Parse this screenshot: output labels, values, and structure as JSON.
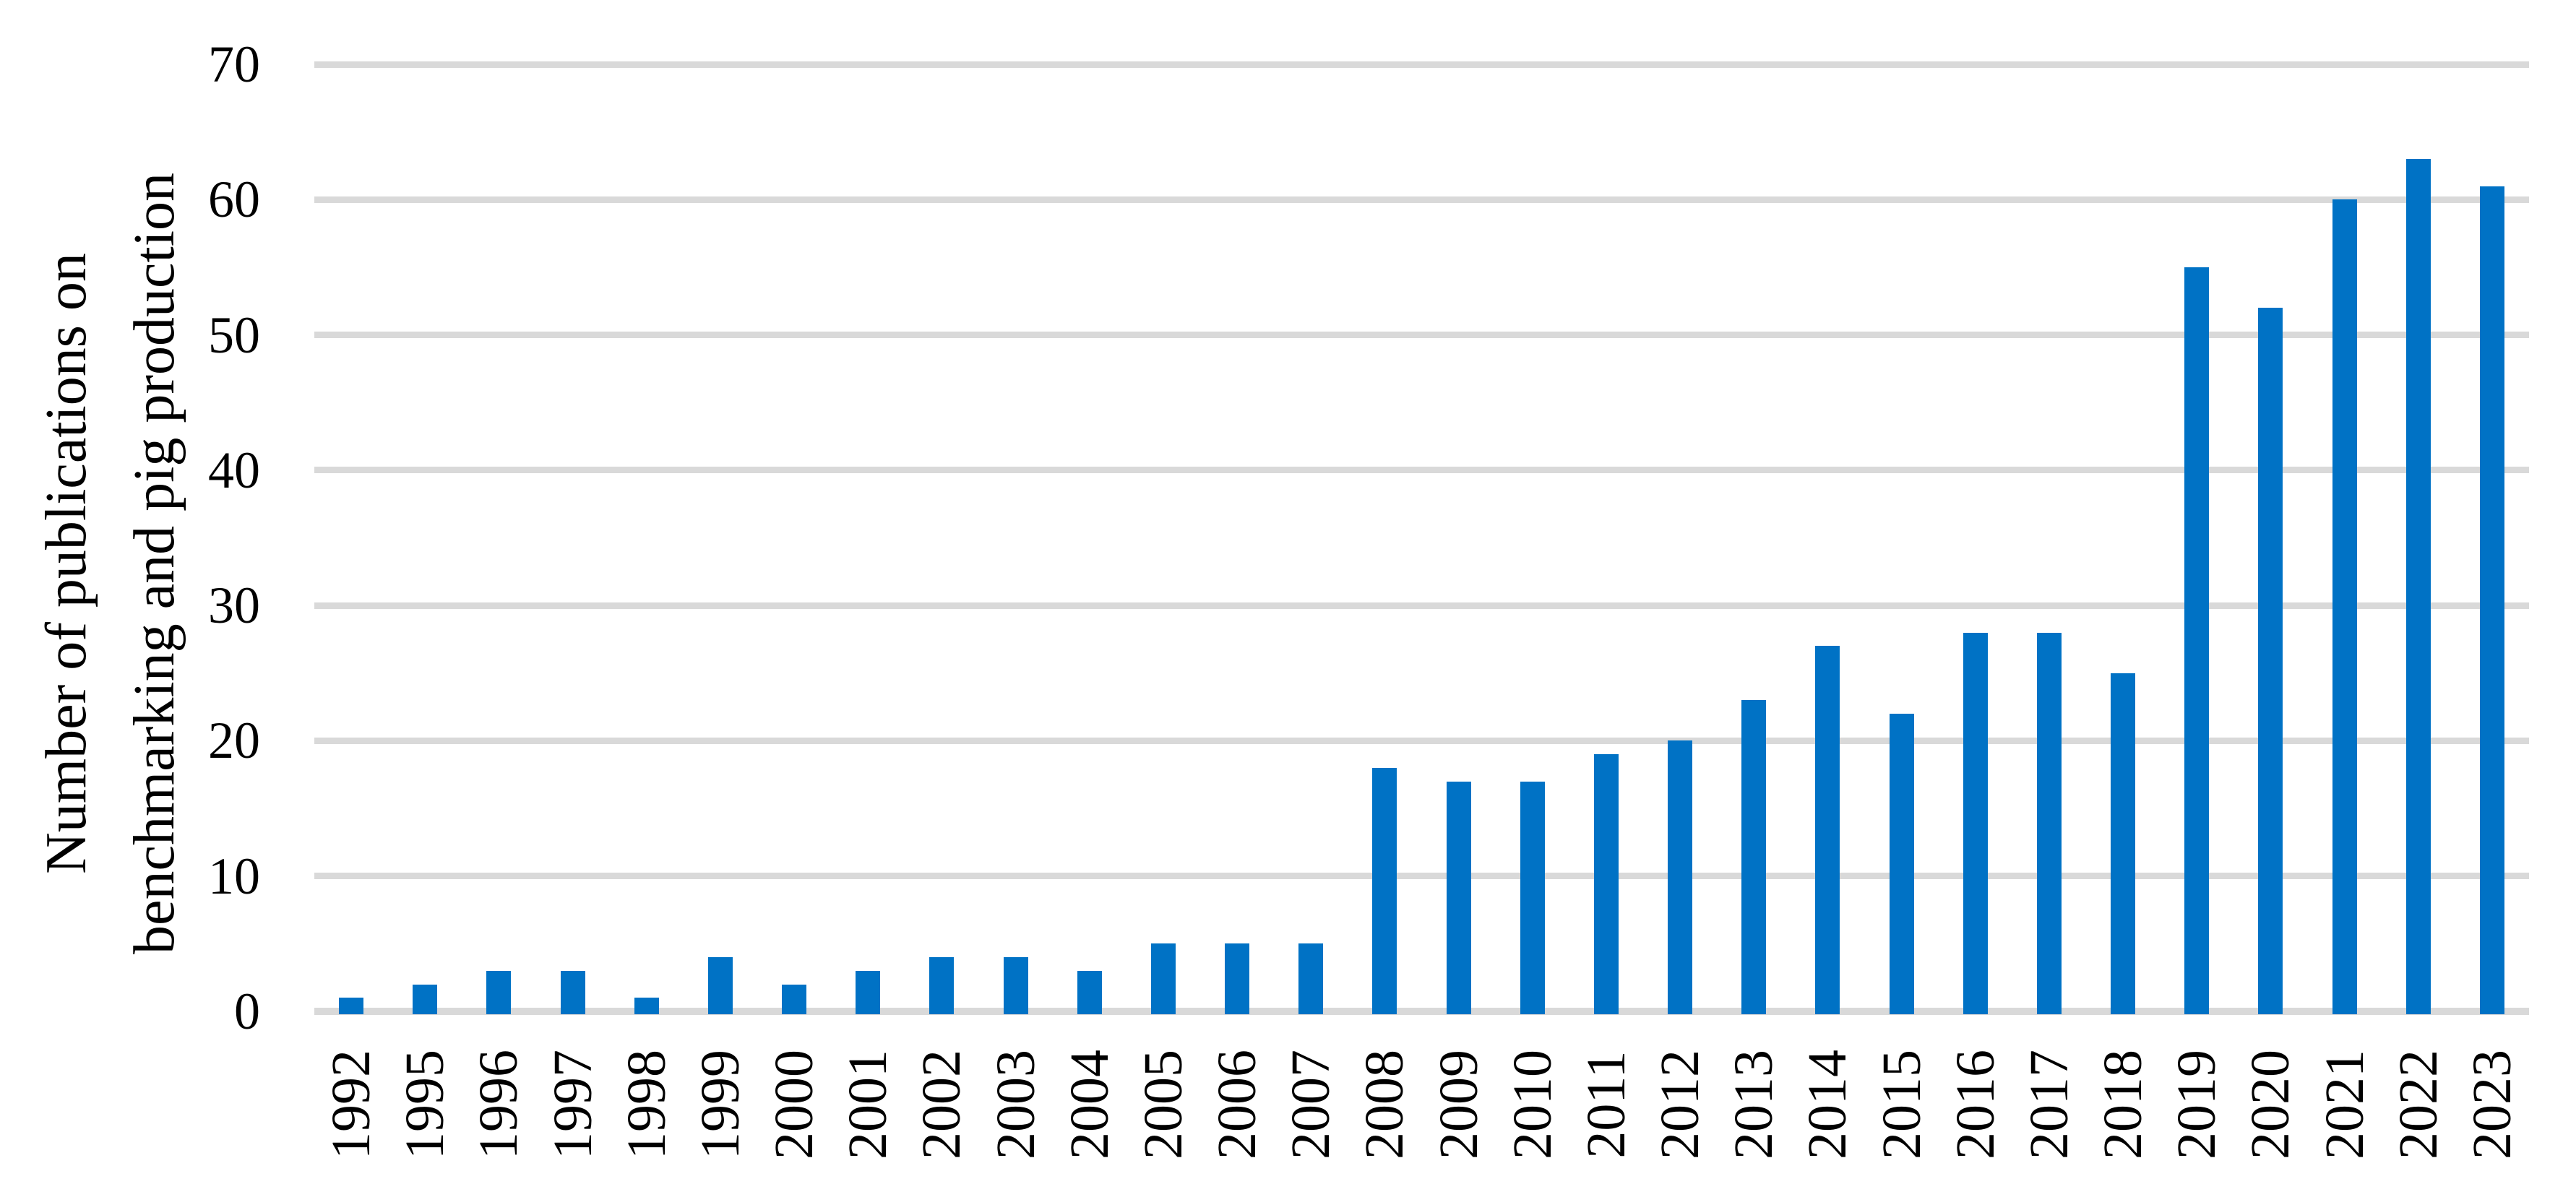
{
  "chart_data": {
    "type": "bar",
    "title": "",
    "xlabel": "",
    "ylabel": "Number of publications on benchmarking and pig production",
    "ylabel_lines": [
      "Number of publications on",
      "benchmarking and pig production"
    ],
    "categories": [
      "1992",
      "1995",
      "1996",
      "1997",
      "1998",
      "1999",
      "2000",
      "2001",
      "2002",
      "2003",
      "2004",
      "2005",
      "2006",
      "2007",
      "2008",
      "2009",
      "2010",
      "2011",
      "2012",
      "2013",
      "2014",
      "2015",
      "2016",
      "2017",
      "2018",
      "2019",
      "2020",
      "2021",
      "2022",
      "2023"
    ],
    "values": [
      1,
      2,
      3,
      3,
      1,
      4,
      2,
      3,
      4,
      4,
      3,
      5,
      5,
      5,
      18,
      17,
      17,
      19,
      20,
      23,
      27,
      22,
      28,
      28,
      25,
      55,
      52,
      60,
      63,
      61
    ],
    "yticks": [
      0,
      10,
      20,
      30,
      40,
      50,
      60,
      70
    ],
    "ylim": [
      0,
      70
    ],
    "grid": "horizontal",
    "legend_position": "none",
    "colors": {
      "bar": "#0072C5",
      "gridline": "#D9D9D9",
      "text": "#000000",
      "background": "#FFFFFF"
    }
  }
}
